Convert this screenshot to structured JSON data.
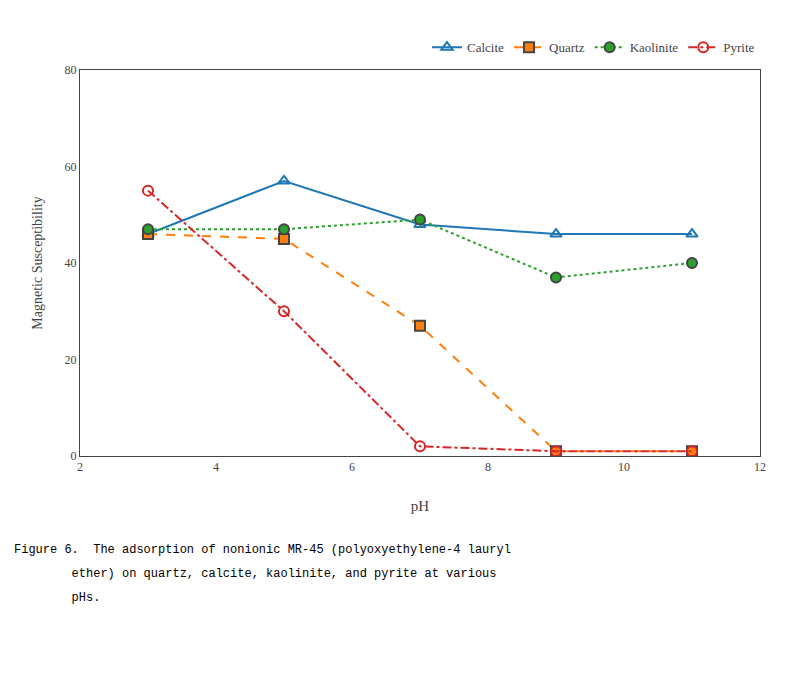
{
  "chart_data": {
    "type": "line",
    "xlabel": "pH",
    "ylabel": "Magnetic Susceptibility",
    "xlim": [
      2,
      12
    ],
    "ylim": [
      0,
      80
    ],
    "xticks": [
      2,
      4,
      6,
      8,
      10,
      12
    ],
    "yticks": [
      0,
      20,
      40,
      60,
      80
    ],
    "grid": false,
    "legend": "upper right",
    "x": [
      3,
      5,
      7,
      9,
      11
    ],
    "series": [
      {
        "name": "Calcite",
        "values": [
          46,
          57,
          48,
          46,
          46
        ],
        "marker": "triangle-up-open",
        "line_style": "solid"
      },
      {
        "name": "Quartz",
        "values": [
          46,
          45,
          27,
          1,
          1
        ],
        "marker": "square",
        "line_style": "dash"
      },
      {
        "name": "Kaolinite",
        "values": [
          47,
          47,
          49,
          37,
          40
        ],
        "marker": "circle",
        "line_style": "dot"
      },
      {
        "name": "Pyrite",
        "values": [
          55,
          30,
          2,
          1,
          1
        ],
        "marker": "circle-open",
        "line_style": "dashdot"
      }
    ],
    "annotations": [
      "Figure 6.  The adsorption of nonionic MR-45 (polyoxyethylene-4 lauryl",
      "        ether) on quartz, calcite, kaolinite, and pyrite at various",
      "        pHs."
    ]
  }
}
